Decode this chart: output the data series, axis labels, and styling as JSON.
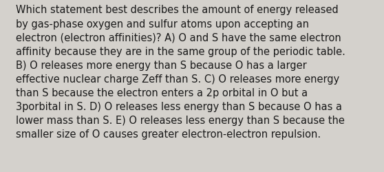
{
  "background_color": "#d4d1cc",
  "text_color": "#1a1a1a",
  "font_size": 10.5,
  "font_family": "DejaVu Sans",
  "lines": [
    "Which statement best describes the amount of energy released",
    "by gas-phase oxygen and sulfur atoms upon accepting an",
    "electron (electron affinities)? A) O and S have the same electron",
    "affinity because they are in the same group of the periodic table.",
    "B) O releases more energy than S because O has a larger",
    "effective nuclear charge Zeff than S. C) O releases more energy",
    "than S because the electron enters a 2p orbital in O but a",
    "3porbital in S. D) O releases less energy than S because O has a",
    "lower mass than S. E) O releases less energy than S because the",
    "smaller size of O causes greater electron-electron repulsion."
  ],
  "figsize": [
    5.58,
    2.51
  ],
  "dpi": 100
}
